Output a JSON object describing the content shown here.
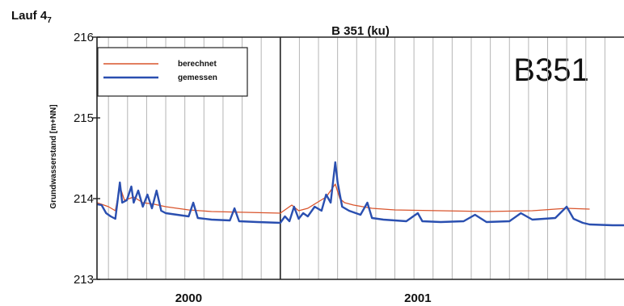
{
  "chart_data": {
    "type": "line",
    "run_label": "Lauf 4",
    "run_label_sub": "7",
    "title": "B 351 (ku)",
    "big_label": "B351",
    "ylabel": "Grundwasserstand [m+NN]",
    "xlabel": "",
    "ylim": [
      213,
      216
    ],
    "yticks": [
      "216",
      "215",
      "214",
      "213"
    ],
    "xlim": [
      1999.7,
      2002.0
    ],
    "xtick_labels": [
      {
        "label": "2000",
        "x": 2000.0
      },
      {
        "label": "2001",
        "x": 2001.0
      }
    ],
    "year_boundary": 2000.5,
    "grid": "vertical",
    "legend": "top-left",
    "series": [
      {
        "name": "berechnet",
        "color": "#d9542c",
        "points": [
          [
            1999.7,
            213.95
          ],
          [
            1999.75,
            213.9
          ],
          [
            1999.78,
            213.85
          ],
          [
            1999.8,
            214.15
          ],
          [
            1999.82,
            213.98
          ],
          [
            1999.86,
            214.02
          ],
          [
            1999.9,
            213.95
          ],
          [
            1999.95,
            213.93
          ],
          [
            2000.0,
            213.9
          ],
          [
            2000.05,
            213.88
          ],
          [
            2000.1,
            213.86
          ],
          [
            2000.2,
            213.84
          ],
          [
            2000.35,
            213.83
          ],
          [
            2000.5,
            213.82
          ],
          [
            2000.55,
            213.92
          ],
          [
            2000.58,
            213.85
          ],
          [
            2000.62,
            213.88
          ],
          [
            2000.66,
            213.95
          ],
          [
            2000.7,
            214.02
          ],
          [
            2000.74,
            214.18
          ],
          [
            2000.76,
            214.0
          ],
          [
            2000.78,
            213.95
          ],
          [
            2000.82,
            213.92
          ],
          [
            2000.9,
            213.88
          ],
          [
            2001.0,
            213.86
          ],
          [
            2001.2,
            213.85
          ],
          [
            2001.4,
            213.84
          ],
          [
            2001.6,
            213.85
          ],
          [
            2001.75,
            213.88
          ],
          [
            2001.85,
            213.87
          ],
          [
            1999.7,
            213.95
          ]
        ]
      },
      {
        "name": "gemessen",
        "color": "#2a4fb0",
        "points": [
          [
            1999.7,
            213.93
          ],
          [
            1999.72,
            213.92
          ],
          [
            1999.74,
            213.82
          ],
          [
            1999.76,
            213.78
          ],
          [
            1999.78,
            213.75
          ],
          [
            1999.8,
            214.2
          ],
          [
            1999.81,
            213.95
          ],
          [
            1999.83,
            213.98
          ],
          [
            1999.85,
            214.15
          ],
          [
            1999.86,
            213.95
          ],
          [
            1999.88,
            214.1
          ],
          [
            1999.9,
            213.9
          ],
          [
            1999.92,
            214.05
          ],
          [
            1999.94,
            213.88
          ],
          [
            1999.96,
            214.1
          ],
          [
            1999.98,
            213.85
          ],
          [
            2000.0,
            213.82
          ],
          [
            2000.05,
            213.8
          ],
          [
            2000.1,
            213.78
          ],
          [
            2000.12,
            213.95
          ],
          [
            2000.14,
            213.76
          ],
          [
            2000.2,
            213.74
          ],
          [
            2000.28,
            213.73
          ],
          [
            2000.3,
            213.88
          ],
          [
            2000.32,
            213.72
          ],
          [
            2000.4,
            213.71
          ],
          [
            2000.5,
            213.7
          ],
          [
            2000.52,
            213.78
          ],
          [
            2000.54,
            213.72
          ],
          [
            2000.56,
            213.9
          ],
          [
            2000.58,
            213.75
          ],
          [
            2000.6,
            213.82
          ],
          [
            2000.62,
            213.78
          ],
          [
            2000.65,
            213.9
          ],
          [
            2000.68,
            213.85
          ],
          [
            2000.7,
            214.05
          ],
          [
            2000.72,
            213.95
          ],
          [
            2000.74,
            214.45
          ],
          [
            2000.75,
            214.2
          ],
          [
            2000.77,
            213.9
          ],
          [
            2000.8,
            213.85
          ],
          [
            2000.85,
            213.8
          ],
          [
            2000.88,
            213.95
          ],
          [
            2000.9,
            213.76
          ],
          [
            2000.95,
            213.74
          ],
          [
            2001.0,
            213.73
          ],
          [
            2001.05,
            213.72
          ],
          [
            2001.1,
            213.82
          ],
          [
            2001.12,
            213.72
          ],
          [
            2001.2,
            213.71
          ],
          [
            2001.3,
            213.72
          ],
          [
            2001.35,
            213.8
          ],
          [
            2001.4,
            213.71
          ],
          [
            2001.5,
            213.72
          ],
          [
            2001.55,
            213.82
          ],
          [
            2001.6,
            213.74
          ],
          [
            2001.7,
            213.76
          ],
          [
            2001.75,
            213.9
          ],
          [
            2001.78,
            213.75
          ],
          [
            2001.82,
            213.7
          ],
          [
            2001.85,
            213.68
          ],
          [
            2001.95,
            213.67
          ],
          [
            2002.0,
            213.67
          ]
        ]
      }
    ]
  }
}
